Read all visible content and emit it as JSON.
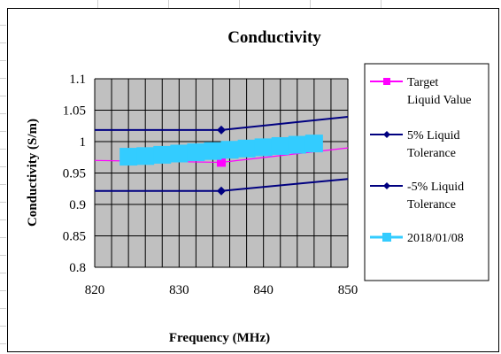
{
  "chart_data": {
    "type": "line",
    "title": "Conductivity",
    "xlabel": "Frequency (MHz)",
    "ylabel": "Conductivity (S/m)",
    "xlim": [
      820,
      850
    ],
    "ylim": [
      0.8,
      1.1
    ],
    "x_ticks": [
      "820",
      "830",
      "840",
      "850"
    ],
    "y_ticks": [
      "0.8",
      "0.85",
      "0.9",
      "0.95",
      "1",
      "1.05",
      "1.1"
    ],
    "grid": true,
    "plot_background": "#c0c0c0",
    "legend_position": "right",
    "series": [
      {
        "name": "Target Liquid Value",
        "legend_lines": [
          "Target",
          "Liquid Value"
        ],
        "color": "#ff00ff",
        "marker": "square",
        "x": [
          820,
          835,
          850
        ],
        "y": [
          0.97,
          0.967,
          0.99
        ],
        "marker_x": [
          835
        ],
        "marker_y": [
          0.967
        ]
      },
      {
        "name": "5% Liquid Tolerance",
        "legend_lines": [
          "5% Liquid",
          "Tolerance"
        ],
        "color": "#000080",
        "marker": "diamond",
        "x": [
          820,
          835,
          850
        ],
        "y": [
          1.0185,
          1.0185,
          1.0395
        ],
        "marker_x": [
          835
        ],
        "marker_y": [
          1.0185
        ]
      },
      {
        "name": "-5% Liquid Tolerance",
        "legend_lines": [
          "-5% Liquid",
          "Tolerance"
        ],
        "color": "#000080",
        "marker": "diamond",
        "x": [
          820,
          835,
          850
        ],
        "y": [
          0.9215,
          0.9215,
          0.9405
        ],
        "marker_x": [
          835
        ],
        "marker_y": [
          0.9215
        ]
      },
      {
        "name": "2018/01/08",
        "legend_lines": [
          "2018/01/08"
        ],
        "color": "#33ccff",
        "marker": "square",
        "x": [
          824,
          826,
          828,
          830,
          832,
          834,
          836,
          838,
          840,
          842,
          844,
          846
        ],
        "y": [
          0.976,
          0.977,
          0.979,
          0.981,
          0.983,
          0.985,
          0.987,
          0.989,
          0.991,
          0.993,
          0.995,
          0.997
        ],
        "marker_x": [
          824,
          826,
          828,
          830,
          832,
          834,
          836,
          838,
          840,
          842,
          844,
          846
        ],
        "marker_y": [
          0.976,
          0.977,
          0.979,
          0.981,
          0.983,
          0.985,
          0.987,
          0.989,
          0.991,
          0.993,
          0.995,
          0.997
        ]
      }
    ]
  }
}
